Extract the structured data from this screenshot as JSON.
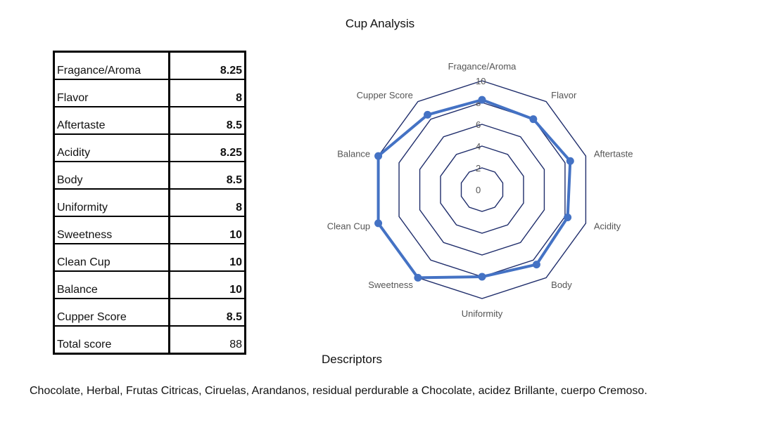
{
  "title": "Cup Analysis",
  "scores": [
    {
      "label": "Fragance/Aroma",
      "value": "8.25"
    },
    {
      "label": "Flavor",
      "value": "8"
    },
    {
      "label": "Aftertaste",
      "value": "8.5"
    },
    {
      "label": "Acidity",
      "value": "8.25"
    },
    {
      "label": "Body",
      "value": "8.5"
    },
    {
      "label": "Uniformity",
      "value": "8"
    },
    {
      "label": "Sweetness",
      "value": "10"
    },
    {
      "label": "Clean Cup",
      "value": "10"
    },
    {
      "label": "Balance",
      "value": "10"
    },
    {
      "label": "Cupper Score",
      "value": "8.5"
    },
    {
      "label": "Total score",
      "value": "88"
    }
  ],
  "chart_data": {
    "type": "radar",
    "categories": [
      "Fragance/Aroma",
      "Flavor",
      "Aftertaste",
      "Acidity",
      "Body",
      "Uniformity",
      "Sweetness",
      "Clean Cup",
      "Balance",
      "Cupper Score"
    ],
    "series": [
      {
        "values": [
          8.25,
          8,
          8.5,
          8.25,
          8.5,
          8,
          10,
          10,
          10,
          8.5
        ],
        "color": "#4472c4"
      }
    ],
    "rlim": [
      0,
      10
    ],
    "ticks": [
      "0",
      "2",
      "4",
      "6",
      "8",
      "10"
    ],
    "grid_color": "#1f2d6b"
  },
  "descriptors": {
    "title": "Descriptors",
    "text": "Chocolate,  Herbal, Frutas Citricas, Ciruelas, Arandanos, residual perdurable a Chocolate, acidez Brillante, cuerpo Cremoso."
  }
}
